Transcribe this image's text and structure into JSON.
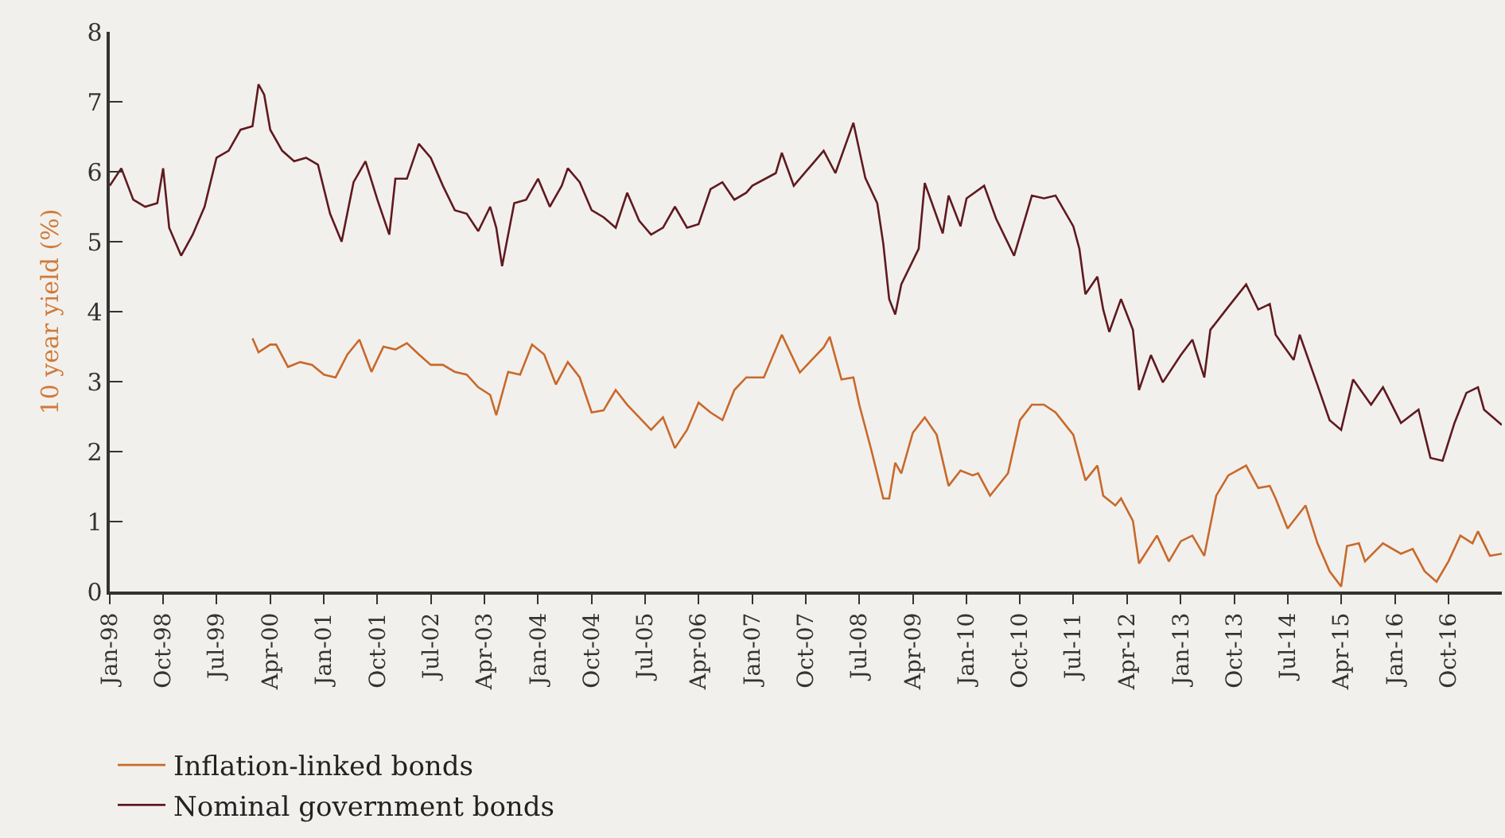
{
  "chart_data": {
    "type": "line",
    "ylabel": "10 year yield (%)",
    "legend": "bottom",
    "grid": false,
    "marker": "none",
    "line_style": "solid",
    "ylim": [
      0,
      8
    ],
    "yticks": [
      0,
      1,
      2,
      3,
      4,
      5,
      6,
      7,
      8
    ],
    "xlim": [
      "1998-01",
      "2017-07"
    ],
    "xticks": [
      {
        "value": "1998-01",
        "label": "Jan-98"
      },
      {
        "value": "1998-10",
        "label": "Oct-98"
      },
      {
        "value": "1999-07",
        "label": "Jul-99"
      },
      {
        "value": "2000-04",
        "label": "Apr-00"
      },
      {
        "value": "2001-01",
        "label": "Jan-01"
      },
      {
        "value": "2001-10",
        "label": "Oct-01"
      },
      {
        "value": "2002-07",
        "label": "Jul-02"
      },
      {
        "value": "2003-04",
        "label": "Apr-03"
      },
      {
        "value": "2004-01",
        "label": "Jan-04"
      },
      {
        "value": "2004-10",
        "label": "Oct-04"
      },
      {
        "value": "2005-07",
        "label": "Jul-05"
      },
      {
        "value": "2006-04",
        "label": "Apr-06"
      },
      {
        "value": "2007-01",
        "label": "Jan-07"
      },
      {
        "value": "2007-10",
        "label": "Oct-07"
      },
      {
        "value": "2008-07",
        "label": "Jul-08"
      },
      {
        "value": "2009-04",
        "label": "Apr-09"
      },
      {
        "value": "2010-01",
        "label": "Jan-10"
      },
      {
        "value": "2010-10",
        "label": "Oct-10"
      },
      {
        "value": "2011-07",
        "label": "Jul-11"
      },
      {
        "value": "2012-04",
        "label": "Apr-12"
      },
      {
        "value": "2013-01",
        "label": "Jan-13"
      },
      {
        "value": "2013-10",
        "label": "Oct-13"
      },
      {
        "value": "2014-07",
        "label": "Jul-14"
      },
      {
        "value": "2015-04",
        "label": "Apr-15"
      },
      {
        "value": "2016-01",
        "label": "Jan-16"
      },
      {
        "value": "2016-10",
        "label": "Oct-16"
      }
    ],
    "series": [
      {
        "name": "Inflation-linked bonds",
        "color": "#c8692a",
        "x": [
          "2000-01",
          "2000-02",
          "2000-04",
          "2000-05",
          "2000-07",
          "2000-09",
          "2000-11",
          "2001-01",
          "2001-03",
          "2001-05",
          "2001-07",
          "2001-09",
          "2001-11",
          "2002-01",
          "2002-03",
          "2002-05",
          "2002-07",
          "2002-09",
          "2002-11",
          "2003-01",
          "2003-03",
          "2003-05",
          "2003-06",
          "2003-08",
          "2003-10",
          "2003-12",
          "2004-02",
          "2004-04",
          "2004-06",
          "2004-08",
          "2004-10",
          "2004-12",
          "2005-02",
          "2005-04",
          "2005-06",
          "2005-08",
          "2005-10",
          "2005-12",
          "2006-02",
          "2006-04",
          "2006-06",
          "2006-08",
          "2006-10",
          "2006-12",
          "2007-03",
          "2007-06",
          "2007-09",
          "2008-01",
          "2008-02",
          "2008-04",
          "2008-06",
          "2008-07",
          "2008-09",
          "2008-11",
          "2008-12",
          "2009-01",
          "2009-02",
          "2009-04",
          "2009-06",
          "2009-08",
          "2009-10",
          "2009-12",
          "2010-02",
          "2010-03",
          "2010-05",
          "2010-08",
          "2010-10",
          "2010-12",
          "2011-02",
          "2011-04",
          "2011-07",
          "2011-09",
          "2011-11",
          "2011-12",
          "2012-02",
          "2012-03",
          "2012-05",
          "2012-06",
          "2012-09",
          "2012-11",
          "2013-01",
          "2013-03",
          "2013-05",
          "2013-07",
          "2013-09",
          "2013-12",
          "2014-02",
          "2014-04",
          "2014-05",
          "2014-07",
          "2014-10",
          "2014-12",
          "2015-02",
          "2015-04",
          "2015-05",
          "2015-07",
          "2015-08",
          "2015-11",
          "2016-02",
          "2016-04",
          "2016-06",
          "2016-08",
          "2016-10",
          "2016-12",
          "2017-02",
          "2017-03",
          "2017-05",
          "2017-07"
        ],
        "values": [
          3.62,
          3.42,
          3.53,
          3.53,
          3.21,
          3.28,
          3.24,
          3.1,
          3.06,
          3.39,
          3.6,
          3.14,
          3.5,
          3.46,
          3.55,
          3.39,
          3.24,
          3.24,
          3.14,
          3.1,
          2.92,
          2.81,
          2.52,
          3.14,
          3.1,
          3.53,
          3.39,
          2.96,
          3.28,
          3.06,
          2.56,
          2.59,
          2.88,
          2.67,
          2.49,
          2.31,
          2.49,
          2.05,
          2.31,
          2.7,
          2.56,
          2.45,
          2.88,
          3.06,
          3.06,
          3.67,
          3.13,
          3.49,
          3.64,
          3.03,
          3.06,
          2.67,
          2.02,
          1.33,
          1.33,
          1.84,
          1.69,
          2.27,
          2.49,
          2.24,
          1.51,
          1.73,
          1.66,
          1.69,
          1.37,
          1.69,
          2.45,
          2.67,
          2.67,
          2.56,
          2.24,
          1.59,
          1.8,
          1.37,
          1.23,
          1.33,
          1.01,
          0.4,
          0.8,
          0.43,
          0.72,
          0.8,
          0.51,
          1.37,
          1.66,
          1.8,
          1.48,
          1.51,
          1.33,
          0.9,
          1.23,
          0.69,
          0.29,
          0.07,
          0.65,
          0.69,
          0.43,
          0.69,
          0.54,
          0.61,
          0.29,
          0.14,
          0.43,
          0.8,
          0.69,
          0.86,
          0.51,
          0.54
        ]
      },
      {
        "name": "Nominal government bonds",
        "color": "#5f1a1f",
        "x": [
          "1998-01",
          "1998-03",
          "1998-05",
          "1998-07",
          "1998-09",
          "1998-10",
          "1998-11",
          "1999-01",
          "1999-03",
          "1999-05",
          "1999-07",
          "1999-09",
          "1999-11",
          "2000-01",
          "2000-02",
          "2000-03",
          "2000-04",
          "2000-06",
          "2000-08",
          "2000-10",
          "2000-12",
          "2001-02",
          "2001-04",
          "2001-06",
          "2001-08",
          "2001-10",
          "2001-12",
          "2002-01",
          "2002-03",
          "2002-05",
          "2002-07",
          "2002-09",
          "2002-11",
          "2003-01",
          "2003-03",
          "2003-05",
          "2003-06",
          "2003-07",
          "2003-09",
          "2003-11",
          "2004-01",
          "2004-03",
          "2004-05",
          "2004-06",
          "2004-08",
          "2004-10",
          "2004-12",
          "2005-02",
          "2005-04",
          "2005-06",
          "2005-08",
          "2005-10",
          "2005-12",
          "2006-02",
          "2006-04",
          "2006-06",
          "2006-08",
          "2006-10",
          "2006-12",
          "2007-01",
          "2007-05",
          "2007-06",
          "2007-08",
          "2008-01",
          "2008-03",
          "2008-06",
          "2008-08",
          "2008-10",
          "2008-11",
          "2008-12",
          "2009-01",
          "2009-02",
          "2009-05",
          "2009-06",
          "2009-09",
          "2009-10",
          "2009-12",
          "2010-01",
          "2010-04",
          "2010-06",
          "2010-09",
          "2010-10",
          "2010-12",
          "2011-02",
          "2011-04",
          "2011-07",
          "2011-08",
          "2011-09",
          "2011-11",
          "2011-12",
          "2012-01",
          "2012-03",
          "2012-05",
          "2012-06",
          "2012-08",
          "2012-10",
          "2013-01",
          "2013-03",
          "2013-05",
          "2013-06",
          "2013-09",
          "2013-12",
          "2014-02",
          "2014-04",
          "2014-05",
          "2014-08",
          "2014-09",
          "2014-12",
          "2015-02",
          "2015-04",
          "2015-06",
          "2015-09",
          "2015-11",
          "2016-02",
          "2016-05",
          "2016-07",
          "2016-09",
          "2016-11",
          "2017-01",
          "2017-03",
          "2017-04",
          "2017-07"
        ],
        "values": [
          5.8,
          6.05,
          5.6,
          5.5,
          5.55,
          6.05,
          5.2,
          4.8,
          5.1,
          5.5,
          6.2,
          6.3,
          6.6,
          6.65,
          7.25,
          7.1,
          6.6,
          6.3,
          6.15,
          6.2,
          6.1,
          5.4,
          5.0,
          5.85,
          6.15,
          5.6,
          5.1,
          5.9,
          5.9,
          6.4,
          6.2,
          5.8,
          5.45,
          5.4,
          5.15,
          5.5,
          5.2,
          4.65,
          5.55,
          5.6,
          5.9,
          5.5,
          5.8,
          6.05,
          5.85,
          5.45,
          5.35,
          5.2,
          5.7,
          5.3,
          5.1,
          5.2,
          5.5,
          5.2,
          5.25,
          5.75,
          5.85,
          5.6,
          5.7,
          5.8,
          5.98,
          6.27,
          5.8,
          6.3,
          5.98,
          6.7,
          5.91,
          5.55,
          4.97,
          4.18,
          3.96,
          4.39,
          4.9,
          5.84,
          5.12,
          5.66,
          5.22,
          5.62,
          5.8,
          5.33,
          4.8,
          5.08,
          5.66,
          5.62,
          5.66,
          5.22,
          4.9,
          4.25,
          4.5,
          4.03,
          3.71,
          4.18,
          3.74,
          2.88,
          3.38,
          2.99,
          3.38,
          3.6,
          3.06,
          3.74,
          4.07,
          4.39,
          4.03,
          4.11,
          3.67,
          3.31,
          3.67,
          2.95,
          2.45,
          2.31,
          3.03,
          2.67,
          2.92,
          2.41,
          2.6,
          1.91,
          1.87,
          2.41,
          2.84,
          2.92,
          2.6,
          2.38
        ]
      }
    ]
  }
}
